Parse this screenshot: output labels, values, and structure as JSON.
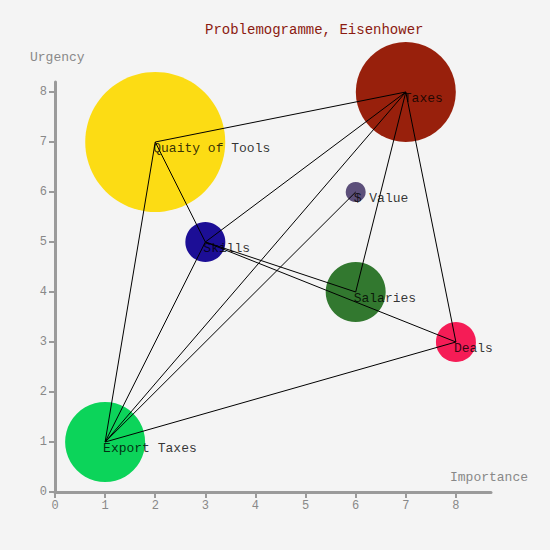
{
  "chart_data": {
    "type": "scatter",
    "title": "Problemogramme, Eisenhower",
    "x_label": "Importance",
    "y_label": "Urgency",
    "xlim": [
      0,
      8.7
    ],
    "ylim": [
      0,
      8.2
    ],
    "xticks": [
      0,
      1,
      2,
      3,
      4,
      5,
      6,
      7,
      8
    ],
    "yticks": [
      0,
      1,
      2,
      3,
      4,
      5,
      6,
      7,
      8
    ],
    "grid": false,
    "points": [
      {
        "name": "Quaity of Tools",
        "x": 2,
        "y": 7,
        "size": 7,
        "color": "#fcdc14"
      },
      {
        "name": "Taxes",
        "x": 7,
        "y": 8,
        "size": 5,
        "color": "#98200c"
      },
      {
        "name": "$ Value",
        "x": 6,
        "y": 6,
        "size": 1,
        "color": "#5c4f7a"
      },
      {
        "name": "Skills",
        "x": 3,
        "y": 5,
        "size": 2,
        "color": "#1c0e96"
      },
      {
        "name": "Salaries",
        "x": 6,
        "y": 4,
        "size": 3,
        "color": "#32782f"
      },
      {
        "name": "Deals",
        "x": 8,
        "y": 3,
        "size": 2,
        "color": "#f51c56"
      },
      {
        "name": "Export Taxes",
        "x": 1,
        "y": 1,
        "size": 4,
        "color": "#0cd45a"
      }
    ],
    "links": [
      [
        "Quaity of Tools",
        "Taxes"
      ],
      [
        "Quaity of Tools",
        "Skills"
      ],
      [
        "Quaity of Tools",
        "Export Taxes"
      ],
      [
        "Taxes",
        "Skills"
      ],
      [
        "Taxes",
        "Salaries"
      ],
      [
        "Taxes",
        "Deals"
      ],
      [
        "Taxes",
        "Export Taxes"
      ],
      [
        "$ Value",
        "Export Taxes"
      ],
      [
        "Skills",
        "Salaries"
      ],
      [
        "Skills",
        "Deals"
      ],
      [
        "Skills",
        "Export Taxes"
      ],
      [
        "Export Taxes",
        "Deals"
      ]
    ]
  }
}
